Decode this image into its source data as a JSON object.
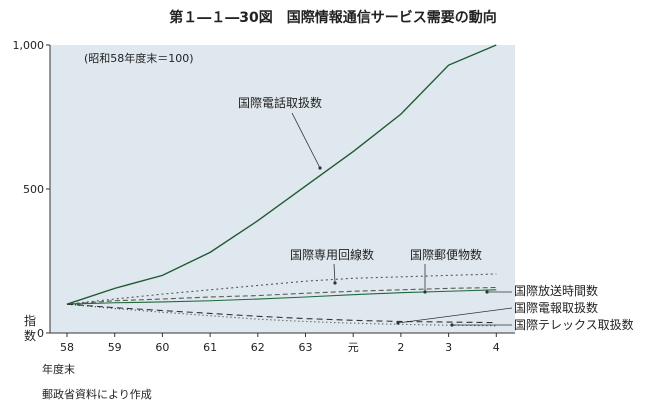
{
  "figure": {
    "title": "第１―１―30図　国際情報通信サービス需要の動向",
    "note": "(昭和58年度末＝100)",
    "ylabel": "指数",
    "xlabel": "年度末",
    "source": "郵政省資料により作成",
    "plot_bg": "#dfe8ee"
  },
  "chart_data": {
    "type": "line",
    "categories": [
      "58",
      "59",
      "60",
      "61",
      "62",
      "63",
      "元",
      "2",
      "3",
      "4"
    ],
    "yticks": [
      "1,000",
      "500",
      "0"
    ],
    "ylim": [
      0,
      1000
    ],
    "grid": false,
    "series": [
      {
        "name": "国際電話取扱数",
        "values": [
          100,
          155,
          200,
          280,
          390,
          510,
          630,
          760,
          930,
          1000
        ],
        "color": "#1f5a33",
        "dash": ""
      },
      {
        "name": "国際専用回線数",
        "values": [
          100,
          118,
          135,
          150,
          165,
          180,
          190,
          195,
          200,
          205
        ],
        "color": "#555555",
        "dash": "2,3"
      },
      {
        "name": "国際郵便物数",
        "values": [
          100,
          112,
          118,
          125,
          130,
          138,
          145,
          150,
          155,
          158
        ],
        "color": "#5a5a5a",
        "dash": "5,3"
      },
      {
        "name": "国際放送時間数",
        "values": [
          100,
          105,
          108,
          112,
          118,
          125,
          133,
          140,
          145,
          150
        ],
        "color": "#1f6a3a",
        "dash": ""
      },
      {
        "name": "国際電報取扱数",
        "values": [
          100,
          88,
          78,
          68,
          58,
          50,
          44,
          40,
          38,
          36
        ],
        "color": "#333333",
        "dash": "6,4"
      },
      {
        "name": "国際テレックス取扱数",
        "values": [
          100,
          85,
          72,
          60,
          48,
          40,
          34,
          30,
          27,
          25
        ],
        "color": "#333333",
        "dash": "1,3"
      }
    ]
  }
}
